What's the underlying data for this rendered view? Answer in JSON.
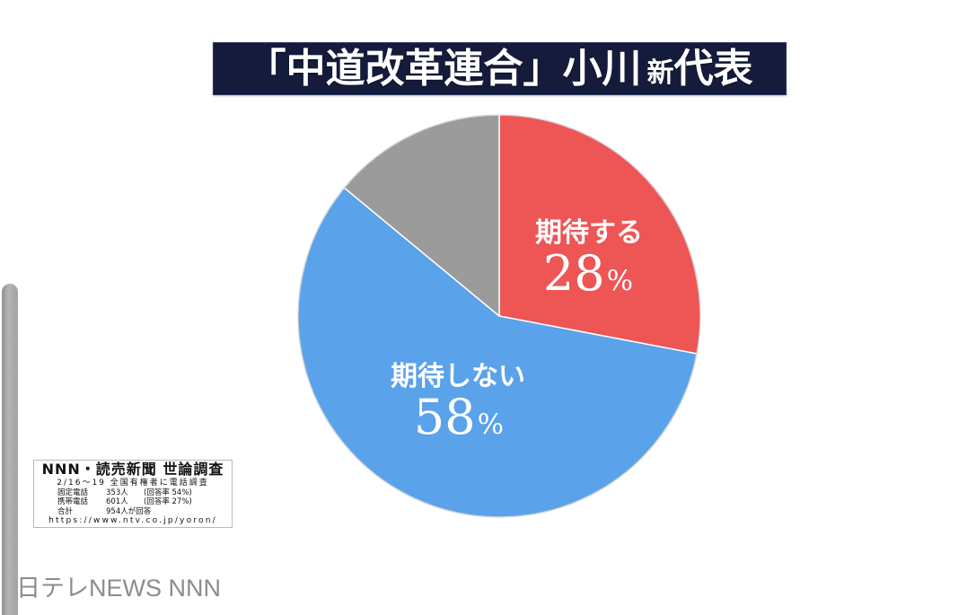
{
  "chart_data": {
    "type": "pie",
    "title": {
      "lead": "「中道改革連合」小川",
      "small": "新",
      "tail": "代表"
    },
    "unit": "%",
    "slices": [
      {
        "label": "期待する",
        "value": 28,
        "color": "#ee5555"
      },
      {
        "label": "期待しない",
        "value": 58,
        "color": "#5aa2ea"
      },
      {
        "value": 14,
        "color": "#9b9b9b"
      }
    ]
  },
  "source": {
    "title": "NNN・読売新聞 世論調査",
    "period": "2/16〜19 全国有権者に電話調査",
    "rows": [
      {
        "label": "固定電話",
        "count": "353人",
        "rate": "(回答率 54%)"
      },
      {
        "label": "携帯電話",
        "count": "601人",
        "rate": "(回答率 27%)"
      },
      {
        "label": "合計",
        "count": "954人が回答"
      }
    ],
    "url": "https://www.ntv.co.jp/yoron/"
  },
  "footer": {
    "watermark": "日テレNEWS NNN"
  }
}
